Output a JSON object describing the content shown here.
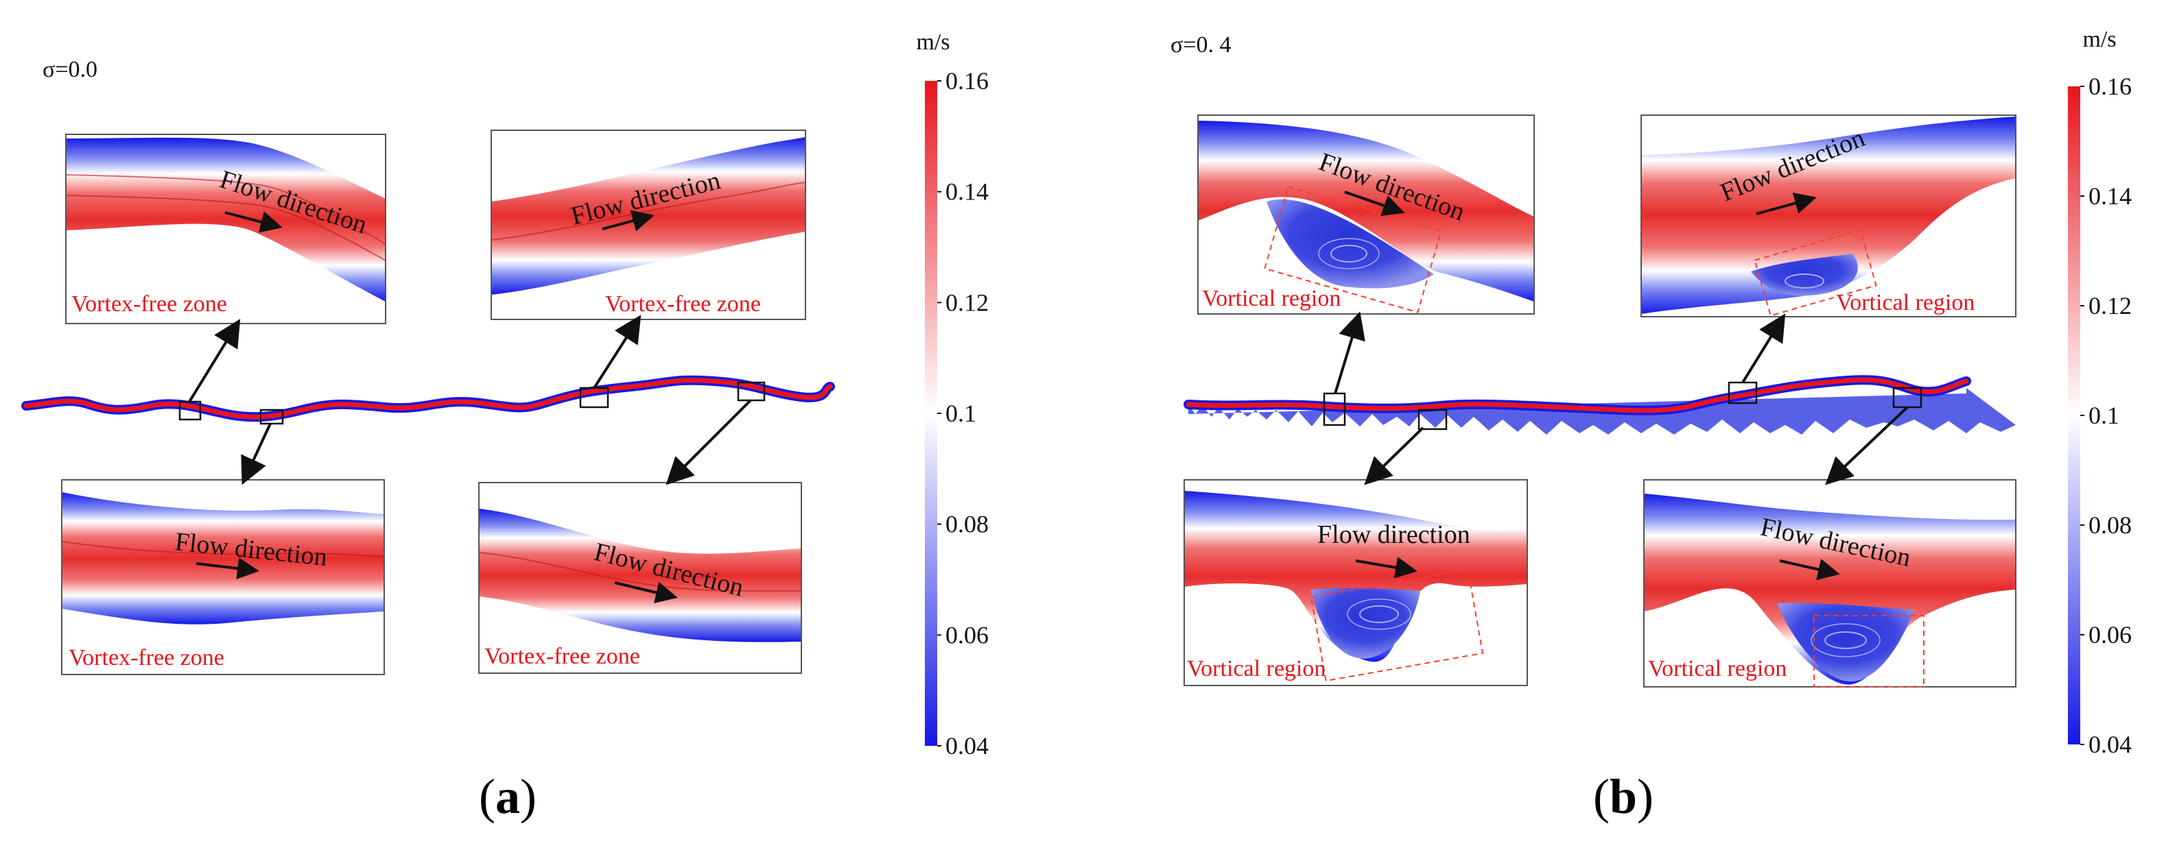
{
  "panels": {
    "a": {
      "label": "a",
      "sigma": "σ=0.0",
      "zone_text": "Vortex-free zone",
      "flow_text": "Flow direction"
    },
    "b": {
      "label": "b",
      "sigma": "σ=0. 4",
      "zone_text": "Vortical region",
      "flow_text": "Flow direction"
    }
  },
  "colorbar": {
    "unit": "m/s",
    "ticks": [
      "0.16",
      "0.14",
      "0.12",
      "0.1",
      "0.08",
      "0.06",
      "0.04"
    ],
    "min": 0.04,
    "max": 0.16,
    "high_color": "#e8141c",
    "mid_color": "#ffffff",
    "low_color": "#1418e6"
  },
  "colors": {
    "fast": "#e8141c",
    "slow": "#1418e6",
    "label_red": "#e8141c"
  }
}
